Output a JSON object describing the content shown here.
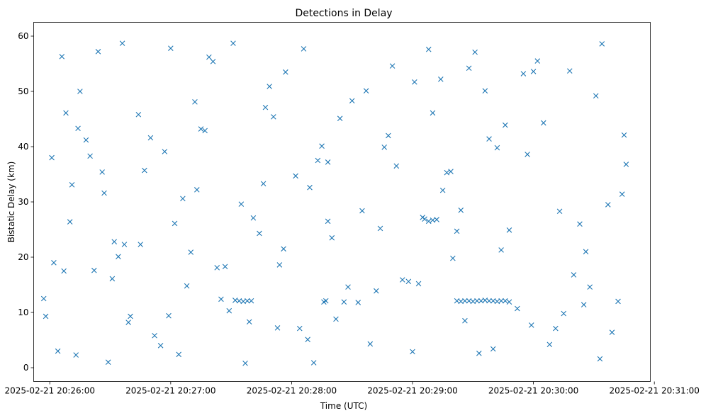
{
  "chart_data": {
    "type": "scatter",
    "title": "Detections in Delay",
    "xlabel": "Time (UTC)",
    "ylabel": "Bistatic Delay (km)",
    "xlim": [
      "2025-02-21 20:25:52",
      "2025-02-21 20:30:58"
    ],
    "ylim": [
      -2.5,
      62.5
    ],
    "x_ticks": [
      "2025-02-21 20:26:00",
      "2025-02-21 20:27:00",
      "2025-02-21 20:28:00",
      "2025-02-21 20:29:00",
      "2025-02-21 20:30:00",
      "2025-02-21 20:31:00"
    ],
    "y_ticks": [
      0,
      10,
      20,
      30,
      40,
      50,
      60
    ],
    "marker": "x",
    "color": "#1f77b4",
    "grid": false,
    "legend": "none",
    "series": [
      {
        "x": [
          "20:25:58",
          "20:26:01",
          "20:26:04",
          "20:26:06",
          "20:26:10",
          "20:26:13",
          "20:26:15",
          "20:26:18",
          "20:26:22",
          "20:26:24",
          "20:26:29",
          "20:26:32",
          "20:26:36",
          "20:26:39",
          "20:26:44",
          "20:26:47",
          "20:26:52",
          "20:26:57",
          "20:27:00",
          "20:27:04",
          "20:27:08",
          "20:27:12",
          "20:27:17",
          "20:27:21",
          "20:27:25",
          "20:27:31",
          "20:27:35",
          "20:27:39",
          "20:27:44",
          "20:27:49",
          "20:27:53",
          "20:27:57",
          "20:28:02",
          "20:28:06",
          "20:28:11",
          "20:28:15",
          "20:28:20",
          "20:28:26",
          "20:28:30",
          "20:28:35",
          "20:28:39",
          "20:28:44",
          "20:28:50",
          "20:28:55",
          "20:29:01",
          "20:29:05",
          "20:29:10",
          "20:29:15",
          "20:29:20",
          "20:29:26",
          "20:29:31",
          "20:29:36",
          "20:29:40",
          "20:29:46",
          "20:29:52",
          "20:29:57",
          "20:30:02",
          "20:30:08",
          "20:30:13",
          "20:30:18",
          "20:30:23",
          "20:30:28",
          "20:30:34",
          "20:30:39",
          "20:30:44",
          "20:26:02",
          "20:26:08",
          "20:26:20",
          "20:26:27",
          "20:26:40",
          "20:26:55",
          "20:27:06",
          "20:27:15",
          "20:27:29",
          "20:27:41",
          "20:27:56",
          "20:28:08",
          "20:28:18",
          "20:28:33",
          "20:28:48",
          "20:29:03",
          "20:29:17",
          "20:29:33",
          "20:29:48",
          "20:30:05",
          "20:30:20",
          "20:30:37",
          "20:25:57",
          "20:26:11",
          "20:26:31",
          "20:26:50",
          "20:27:10",
          "20:27:27",
          "20:27:46",
          "20:28:04",
          "20:28:24",
          "20:28:42",
          "20:29:00",
          "20:29:22",
          "20:29:42",
          "20:30:00",
          "20:30:25",
          "20:30:42",
          "20:27:32",
          "20:27:34",
          "20:27:36",
          "20:27:38",
          "20:27:40",
          "20:29:22",
          "20:29:24",
          "20:29:26",
          "20:29:28",
          "20:29:30",
          "20:29:32",
          "20:29:34",
          "20:29:36",
          "20:29:38",
          "20:29:40",
          "20:29:42",
          "20:29:44",
          "20:29:46",
          "20:29:48",
          "20:28:16",
          "20:28:17",
          "20:28:18",
          "20:29:06",
          "20:29:08",
          "20:29:10",
          "20:29:12",
          "20:29:14",
          "20:26:14",
          "20:26:34",
          "20:26:59",
          "20:27:23",
          "20:27:51",
          "20:28:13",
          "20:28:37",
          "20:28:58",
          "20:29:19",
          "20:29:44",
          "20:30:11",
          "20:30:31",
          "20:30:46",
          "20:26:26",
          "20:26:45",
          "20:27:02",
          "20:27:19",
          "20:27:37",
          "20:27:54",
          "20:28:09",
          "20:28:28",
          "20:28:46",
          "20:29:08",
          "20:29:24",
          "20:29:38",
          "20:29:55",
          "20:30:15",
          "20:30:33",
          "20:26:07",
          "20:26:37",
          "20:27:13",
          "20:27:47",
          "20:28:22",
          "20:28:52",
          "20:29:28",
          "20:29:59",
          "20:30:26",
          "20:30:45"
        ],
        "y": [
          9.3,
          38.0,
          3.0,
          56.3,
          26.4,
          2.3,
          50.0,
          41.2,
          17.6,
          57.2,
          1.0,
          22.8,
          58.7,
          8.2,
          45.8,
          35.7,
          5.8,
          39.1,
          57.8,
          2.4,
          14.8,
          48.1,
          42.9,
          55.4,
          12.4,
          58.7,
          29.6,
          8.3,
          24.3,
          50.9,
          7.2,
          53.5,
          34.7,
          57.7,
          0.9,
          40.1,
          23.5,
          11.9,
          48.3,
          28.4,
          4.3,
          25.2,
          54.6,
          15.9,
          51.7,
          27.2,
          46.1,
          32.1,
          19.8,
          8.5,
          57.1,
          50.1,
          3.4,
          43.9,
          10.7,
          38.6,
          55.5,
          4.2,
          28.3,
          53.7,
          26.0,
          14.6,
          58.6,
          6.4,
          31.4,
          19.0,
          46.1,
          38.3,
          31.6,
          9.3,
          4.0,
          30.6,
          43.2,
          10.3,
          27.1,
          21.5,
          5.1,
          37.2,
          11.8,
          42.0,
          15.2,
          35.3,
          2.6,
          24.9,
          44.3,
          16.8,
          29.5,
          12.5,
          33.1,
          16.1,
          41.6,
          20.9,
          18.3,
          33.3,
          7.1,
          45.1,
          13.9,
          2.9,
          24.7,
          39.8,
          53.6,
          11.4,
          12.0,
          12.2,
          12.1,
          12.0,
          12.1,
          12.1,
          12.1,
          12.0,
          12.1,
          12.1,
          12.0,
          12.1,
          12.1,
          12.2,
          12.1,
          12.1,
          12.0,
          12.1,
          12.1,
          11.9,
          11.9,
          12.1,
          26.5,
          26.9,
          26.5,
          26.7,
          26.8,
          52.2,
          43.3,
          20.1,
          9.4,
          18.1,
          45.4,
          37.5,
          50.1,
          15.6,
          35.5,
          21.3,
          7.1,
          49.2,
          36.8,
          35.4,
          22.3,
          26.1,
          56.2,
          0.8,
          18.6,
          32.6,
          14.6,
          39.9,
          57.6,
          28.5,
          41.4,
          53.2,
          9.8,
          1.6,
          17.5,
          22.3,
          32.2,
          47.1,
          8.8,
          36.5,
          54.2,
          7.7,
          21.0,
          42.1
        ]
      }
    ]
  }
}
